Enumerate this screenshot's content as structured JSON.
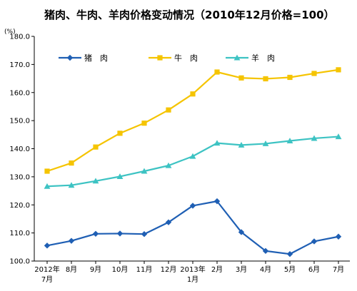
{
  "title": "猪肉、牛肉、羊肉价格变动情况（2010年12月价格=100）",
  "unit": "(%)",
  "chart_data": {
    "type": "line",
    "title": "猪肉、牛肉、羊肉价格变动情况（2010年12月价格=100）",
    "ylabel": "(%)",
    "xlabel": "",
    "ylim": [
      100,
      180
    ],
    "yticks": [
      "100.0",
      "110.0",
      "120.0",
      "130.0",
      "140.0",
      "150.0",
      "160.0",
      "170.0",
      "180.0"
    ],
    "categories": [
      [
        "2012年",
        "7月"
      ],
      [
        "8月"
      ],
      [
        "9月"
      ],
      [
        "10月"
      ],
      [
        "11月"
      ],
      [
        "12月"
      ],
      [
        "2013年",
        "1月"
      ],
      [
        "2月"
      ],
      [
        "3月"
      ],
      [
        "4月"
      ],
      [
        "5月"
      ],
      [
        "6月"
      ],
      [
        "7月"
      ]
    ],
    "grid": false,
    "legend_position": "top-left",
    "series": [
      {
        "name": "猪　肉",
        "color": "#1f5fb4",
        "marker": "diamond",
        "values": [
          105.5,
          107.2,
          109.7,
          109.8,
          109.6,
          113.8,
          119.7,
          121.3,
          110.3,
          103.6,
          102.5,
          107.0,
          108.7
        ]
      },
      {
        "name": "牛　肉",
        "color": "#f5c400",
        "marker": "square",
        "values": [
          132.0,
          134.9,
          140.6,
          145.5,
          149.1,
          153.8,
          159.5,
          167.3,
          165.2,
          164.9,
          165.4,
          166.8,
          168.1
        ]
      },
      {
        "name": "羊　肉",
        "color": "#3dc3c3",
        "marker": "triangle",
        "values": [
          126.6,
          127.0,
          128.5,
          130.1,
          132.0,
          134.0,
          137.3,
          142.0,
          141.3,
          141.8,
          142.8,
          143.7,
          144.3
        ]
      }
    ]
  }
}
